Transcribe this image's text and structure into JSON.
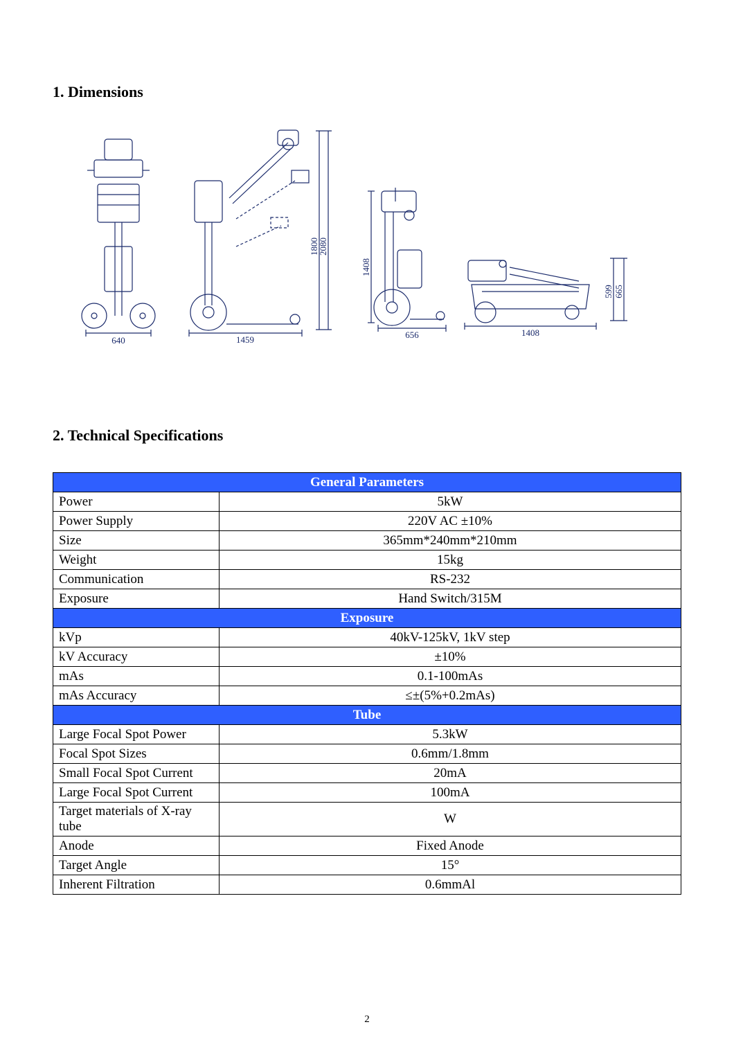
{
  "headings": {
    "dimensions": "1. Dimensions",
    "specs": "2. Technical Specifications"
  },
  "diagram": {
    "dims": {
      "w1": "640",
      "w2": "1459",
      "h1": "1800",
      "h2": "2080",
      "h3": "1408",
      "w3": "656",
      "w4": "1408",
      "h4": "665",
      "h5": "599"
    },
    "stroke": "#1a2a6b",
    "text_color": "#1a2a6b"
  },
  "table": {
    "header_bg": "#2f5fff",
    "header_color": "#ffffff",
    "sections": [
      {
        "title": "General Parameters",
        "rows": [
          {
            "label": "Power",
            "value": "5kW"
          },
          {
            "label": "Power Supply",
            "value": "220V AC ±10%"
          },
          {
            "label": "Size",
            "value": "365mm*240mm*210mm"
          },
          {
            "label": "Weight",
            "value": "15kg"
          },
          {
            "label": "Communication",
            "value": "RS-232"
          },
          {
            "label": "Exposure",
            "value": "Hand Switch/315M"
          }
        ]
      },
      {
        "title": "Exposure",
        "rows": [
          {
            "label": "kVp",
            "value": "40kV-125kV, 1kV step"
          },
          {
            "label": "kV Accuracy",
            "value": "±10%"
          },
          {
            "label": "mAs",
            "value": "0.1-100mAs"
          },
          {
            "label": "mAs Accuracy",
            "value": "≤±(5%+0.2mAs)"
          }
        ]
      },
      {
        "title": "Tube",
        "rows": [
          {
            "label": "Large Focal Spot Power",
            "value": "5.3kW"
          },
          {
            "label": "Focal Spot Sizes",
            "value": "0.6mm/1.8mm"
          },
          {
            "label": "Small Focal Spot Current",
            "value": "20mA"
          },
          {
            "label": "Large Focal Spot Current",
            "value": "100mA"
          },
          {
            "label": "Target materials of X-ray tube",
            "value": "W"
          },
          {
            "label": "Anode",
            "value": "Fixed Anode"
          },
          {
            "label": "Target Angle",
            "value": "15°"
          },
          {
            "label": "Inherent Filtration",
            "value": "0.6mmAl"
          }
        ]
      }
    ]
  },
  "page_number": "2"
}
